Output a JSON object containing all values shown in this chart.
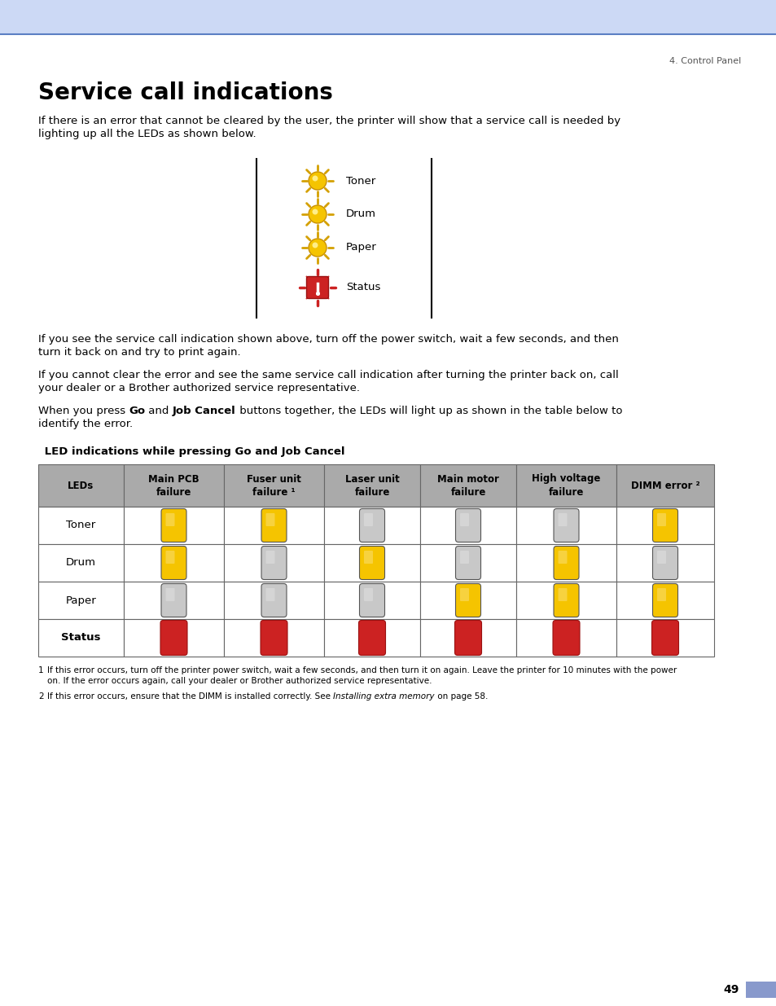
{
  "title": "Service call indications",
  "header_bar_color": "#ccd9f5",
  "header_line_color": "#5b7fc4",
  "page_label": "4. Control Panel",
  "page_number": "49",
  "intro_text1": "If there is an error that cannot be cleared by the user, the printer will show that a service call is needed by",
  "intro_text2": "lighting up all the LEDs as shown below.",
  "go_text1": "If you see the service call indication shown above, turn off the power switch, wait a few seconds, and then",
  "go_text2": "turn it back on and try to print again.",
  "cannot_clear_text1": "If you cannot clear the error and see the same service call indication after turning the printer back on, call",
  "cannot_clear_text2": "your dealer or a Brother authorized service representative.",
  "press_go_line1_pre": "When you press ",
  "press_go_bold1": "Go",
  "press_go_line1_mid": " and ",
  "press_go_bold2": "Job Cancel",
  "press_go_line1_post": " buttons together, the LEDs will light up as shown in the table below to",
  "press_go_line2": "identify the error.",
  "table_title": " LED indications while pressing Go and Job Cancel",
  "table_header": [
    "LEDs",
    "Main PCB\nfailure",
    "Fuser unit\nfailure ¹",
    "Laser unit\nfailure",
    "Main motor\nfailure",
    "High voltage\nfailure",
    "DIMM error ²"
  ],
  "table_rows": [
    "Toner",
    "Drum",
    "Paper",
    "Status"
  ],
  "table_data": [
    [
      "Y",
      "Y",
      "N",
      "N",
      "N",
      "Y"
    ],
    [
      "Y",
      "N",
      "Y",
      "N",
      "Y",
      "N"
    ],
    [
      "N",
      "N",
      "N",
      "Y",
      "Y",
      "Y"
    ],
    [
      "R",
      "R",
      "R",
      "R",
      "R",
      "R"
    ]
  ],
  "footnote1_num": "1",
  "footnote1_text": "If this error occurs, turn off the printer power switch, wait a few seconds, and then turn it on again. Leave the printer for 10 minutes with the power",
  "footnote1_text2": "on. If the error occurs again, call your dealer or Brother authorized service representative.",
  "footnote2_num": "2",
  "footnote2_pre": "If this error occurs, ensure that the DIMM is installed correctly. See ",
  "footnote2_italic": "Installing extra memory",
  "footnote2_post": " on page 58.",
  "yellow_color": "#F5C400",
  "red_color": "#CC2222",
  "gray_color": "#C8C8C8",
  "table_header_bg": "#AAAAAA",
  "table_border": "#666666"
}
